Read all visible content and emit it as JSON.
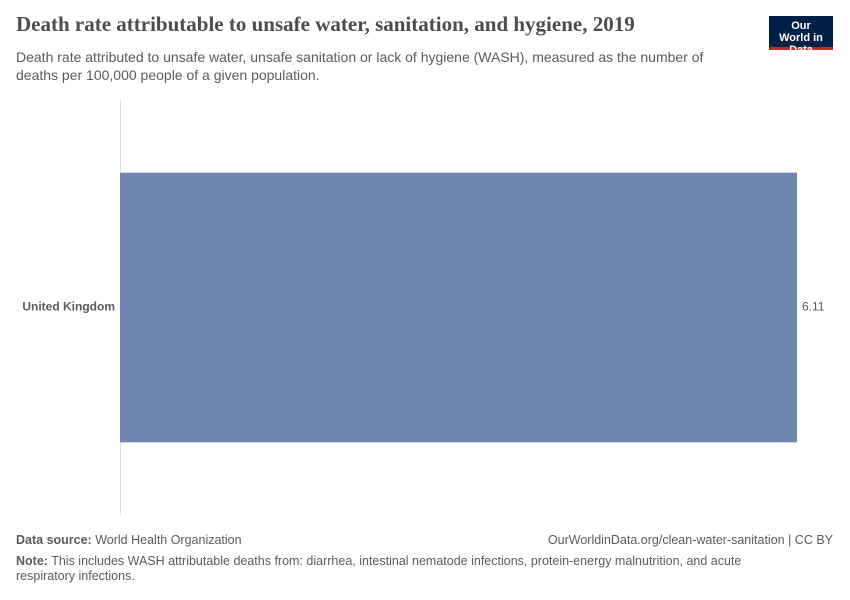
{
  "logo": "Our World in Data",
  "chart_data": {
    "type": "bar",
    "orientation": "horizontal",
    "title": "Death rate attributable to unsafe water, sanitation, and hygiene, 2019",
    "subtitle": "Death rate attributed to unsafe water, unsafe sanitation or lack of hygiene (WASH), measured as the number of deaths per 100,000 people of a given population.",
    "categories": [
      "United Kingdom"
    ],
    "values": [
      6.11
    ],
    "color": "#7088b0"
  },
  "footer": {
    "source_label": "Data source:",
    "source": "World Health Organization",
    "url": "OurWorldinData.org/clean-water-sanitation | CC BY",
    "note_label": "Note:",
    "note": "This includes WASH attributable deaths from: diarrhea, intestinal nematode infections, protein-energy malnutrition, and acute respiratory infections."
  }
}
